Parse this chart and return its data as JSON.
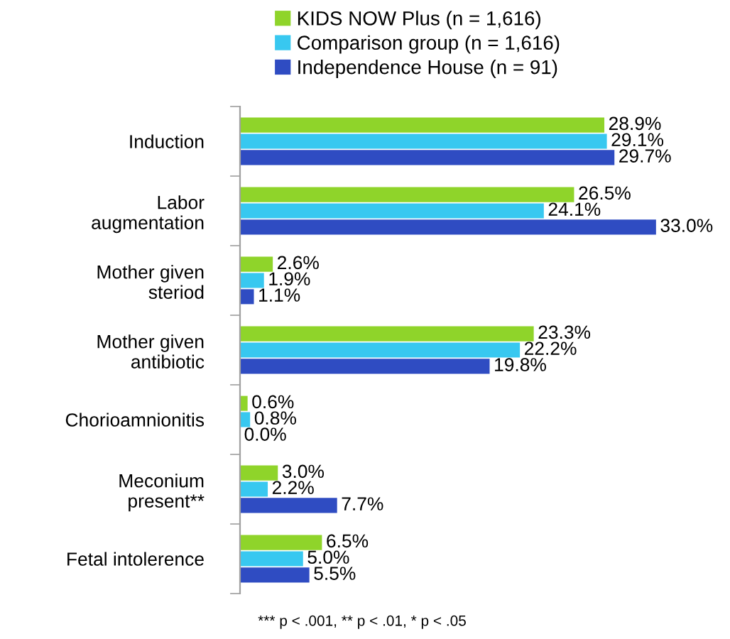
{
  "chart_data": {
    "type": "bar",
    "orientation": "horizontal",
    "tick_labels": "y",
    "legend": "top",
    "categories": [
      "Induction",
      "Labor\naugmentation",
      "Mother given\nsteriod",
      "Mother given\nantibiotic",
      "Chorioamnionitis",
      "Meconium\npresent**",
      "Fetal intolerence"
    ],
    "series": [
      {
        "name": "KIDS NOW Plus (n = 1,616)",
        "color": "#8fd42a",
        "values": [
          28.9,
          26.5,
          2.6,
          23.3,
          0.6,
          3.0,
          6.5
        ],
        "value_labels": [
          "28.9%",
          "26.5%",
          "2.6%",
          "23.3%",
          "0.6%",
          "3.0%",
          "6.5%"
        ]
      },
      {
        "name": "Comparison group (n = 1,616)",
        "color": "#38c8f0",
        "values": [
          29.1,
          24.1,
          1.9,
          22.2,
          0.8,
          2.2,
          5.0
        ],
        "value_labels": [
          "29.1%",
          "24.1%",
          "1.9%",
          "22.2%",
          "0.8%",
          "2.2%",
          "5.0%"
        ]
      },
      {
        "name": "Independence House (n = 91)",
        "color": "#2f4cc2",
        "values": [
          29.7,
          33.0,
          1.1,
          19.8,
          0.0,
          7.7,
          5.5
        ],
        "value_labels": [
          "29.7%",
          "33.0%",
          "1.1%",
          "19.8%",
          "0.0%",
          "7.7%",
          "5.5%"
        ]
      }
    ],
    "annotations": [
      "*** p < .001, ** p < .01, * p < .05"
    ]
  }
}
